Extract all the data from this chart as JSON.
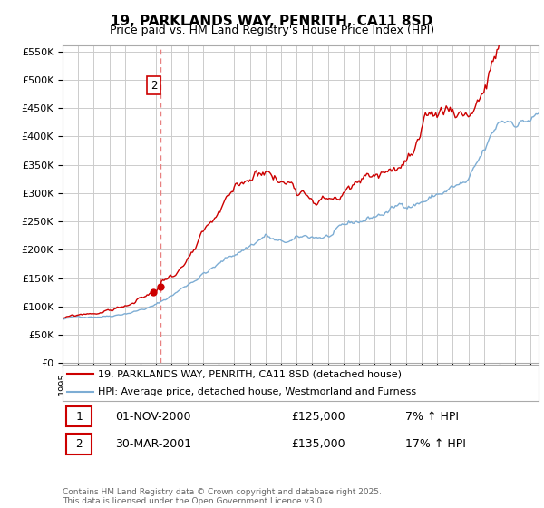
{
  "title": "19, PARKLANDS WAY, PENRITH, CA11 8SD",
  "subtitle": "Price paid vs. HM Land Registry's House Price Index (HPI)",
  "legend_line1": "19, PARKLANDS WAY, PENRITH, CA11 8SD (detached house)",
  "legend_line2": "HPI: Average price, detached house, Westmorland and Furness",
  "footer": "Contains HM Land Registry data © Crown copyright and database right 2025.\nThis data is licensed under the Open Government Licence v3.0.",
  "sale1_label": "1",
  "sale1_date": "01-NOV-2000",
  "sale1_price": "£125,000",
  "sale1_hpi": "7% ↑ HPI",
  "sale2_label": "2",
  "sale2_date": "30-MAR-2001",
  "sale2_price": "£135,000",
  "sale2_hpi": "17% ↑ HPI",
  "sale1_x": 2000.83,
  "sale2_x": 2001.25,
  "sale1_y": 125000,
  "sale2_y": 135000,
  "vline_x": 2001.25,
  "hpi_color": "#7dadd4",
  "price_color": "#cc0000",
  "vline_color": "#e88080",
  "background_color": "#ffffff",
  "grid_color": "#cccccc",
  "ylim": [
    0,
    560000
  ],
  "yticks": [
    0,
    50000,
    100000,
    150000,
    200000,
    250000,
    300000,
    350000,
    400000,
    450000,
    500000,
    550000
  ],
  "xmin": 1995.0,
  "xmax": 2025.5
}
